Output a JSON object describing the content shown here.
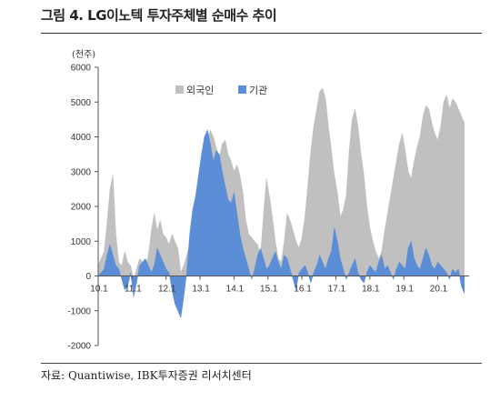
{
  "header": {
    "title": "그림 4. LG이노텍 투자주체별 순매수 추이"
  },
  "footer": {
    "source": "자료: Quantiwise, IBK투자증권 리서치센터"
  },
  "colors": {
    "foreign": "#c0c0c0",
    "institution": "#5b8ed6",
    "axis": "#555555"
  },
  "chart_data": {
    "type": "area",
    "unit": "(천주)",
    "ylim": [
      -2000,
      6000
    ],
    "yticks": [
      -2000,
      -1000,
      0,
      1000,
      2000,
      3000,
      4000,
      5000,
      6000
    ],
    "xticks": [
      "10.1",
      "11.1",
      "12.1",
      "13.1",
      "14.1",
      "15.1",
      "16.1",
      "17.1",
      "18.1",
      "19.1",
      "20.1"
    ],
    "xrange": [
      0,
      125
    ],
    "legend": {
      "placement": "top-center"
    },
    "series": [
      {
        "name": "외국인",
        "key": "foreign",
        "x": [
          0,
          2,
          3,
          4,
          5,
          6,
          7,
          8,
          9,
          10,
          11,
          12,
          13,
          14,
          15,
          16,
          17,
          18,
          19,
          20,
          21,
          22,
          23,
          24,
          25,
          26,
          27,
          28,
          29,
          30,
          31,
          32,
          33,
          34,
          35,
          36,
          37,
          38,
          39,
          40,
          41,
          42,
          43,
          44,
          45,
          46,
          47,
          48,
          49,
          50,
          51,
          52,
          53,
          54,
          55,
          56,
          57,
          58,
          59,
          60,
          61,
          62,
          63,
          64,
          65,
          66,
          67,
          68,
          69,
          70,
          71,
          72,
          73,
          74,
          75,
          76,
          77,
          78,
          79,
          80,
          81,
          82,
          83,
          84,
          85,
          86,
          87,
          88,
          89,
          90,
          91,
          92,
          93,
          94,
          95,
          96,
          97,
          98,
          99,
          100,
          101,
          102,
          103,
          104,
          105,
          106,
          107,
          108,
          109,
          110,
          111,
          112,
          113,
          114,
          115,
          116,
          117,
          118,
          119,
          120,
          121,
          122,
          123,
          124
        ],
        "values": [
          300,
          700,
          1500,
          2500,
          2900,
          1200,
          400,
          300,
          700,
          400,
          300,
          -100,
          200,
          500,
          400,
          200,
          600,
          1300,
          1800,
          1300,
          1600,
          1200,
          1100,
          900,
          1200,
          1000,
          800,
          100,
          300,
          600,
          900,
          1500,
          2000,
          2500,
          3100,
          3700,
          3900,
          4200,
          4000,
          3700,
          3400,
          3800,
          3900,
          3500,
          3300,
          3000,
          3200,
          2900,
          2400,
          1600,
          1200,
          1100,
          1000,
          900,
          600,
          1800,
          2800,
          2300,
          1700,
          1000,
          500,
          400,
          1000,
          1800,
          1600,
          1300,
          1000,
          800,
          1100,
          1700,
          2600,
          3600,
          4300,
          4800,
          5300,
          5400,
          5100,
          4300,
          3600,
          2900,
          2400,
          1700,
          1900,
          2300,
          3600,
          4500,
          4800,
          4300,
          3500,
          2900,
          2000,
          1400,
          1000,
          700,
          500,
          700,
          1300,
          1800,
          2300,
          2800,
          3300,
          3800,
          4100,
          3600,
          3000,
          2800,
          3300,
          3700,
          4000,
          4600,
          4900,
          4800,
          4400,
          4100,
          3900,
          4300,
          5000,
          5200,
          4800,
          5100,
          5000,
          4800,
          4600,
          4400
        ]
      },
      {
        "name": "기관",
        "key": "institution",
        "x": [
          0,
          2,
          3,
          4,
          5,
          6,
          7,
          8,
          9,
          10,
          11,
          12,
          13,
          14,
          15,
          16,
          17,
          18,
          19,
          20,
          21,
          22,
          23,
          24,
          25,
          26,
          27,
          28,
          29,
          30,
          31,
          32,
          33,
          34,
          35,
          36,
          37,
          38,
          39,
          40,
          41,
          42,
          43,
          44,
          45,
          46,
          47,
          48,
          49,
          50,
          51,
          52,
          53,
          54,
          55,
          56,
          57,
          58,
          59,
          60,
          61,
          62,
          63,
          64,
          65,
          66,
          67,
          68,
          69,
          70,
          71,
          72,
          73,
          74,
          75,
          76,
          77,
          78,
          79,
          80,
          81,
          82,
          83,
          84,
          85,
          86,
          87,
          88,
          89,
          90,
          91,
          92,
          93,
          94,
          95,
          96,
          97,
          98,
          99,
          100,
          101,
          102,
          103,
          104,
          105,
          106,
          107,
          108,
          109,
          110,
          111,
          112,
          113,
          114,
          115,
          116,
          117,
          118,
          119,
          120,
          121,
          122,
          123,
          124
        ],
        "values": [
          0,
          200,
          600,
          900,
          600,
          300,
          200,
          -100,
          -400,
          -300,
          100,
          -600,
          -200,
          300,
          400,
          500,
          300,
          100,
          300,
          800,
          600,
          400,
          200,
          100,
          -400,
          -800,
          -1000,
          -1200,
          -600,
          100,
          1200,
          1900,
          2300,
          2900,
          3500,
          4000,
          4200,
          3800,
          3300,
          3600,
          3500,
          3000,
          2600,
          2200,
          2100,
          2400,
          1800,
          1200,
          800,
          500,
          200,
          -100,
          200,
          600,
          800,
          500,
          200,
          300,
          500,
          700,
          400,
          200,
          600,
          500,
          200,
          -100,
          -400,
          100,
          200,
          300,
          100,
          -200,
          100,
          300,
          600,
          400,
          200,
          500,
          700,
          1400,
          1000,
          500,
          200,
          -100,
          100,
          300,
          500,
          100,
          -100,
          -200,
          100,
          300,
          200,
          100,
          400,
          600,
          200,
          300,
          100,
          -100,
          200,
          400,
          300,
          200,
          800,
          1000,
          500,
          300,
          200,
          500,
          800,
          600,
          300,
          200,
          400,
          300,
          200,
          100,
          -100,
          200,
          100,
          200,
          -300,
          -500
        ]
      }
    ]
  }
}
